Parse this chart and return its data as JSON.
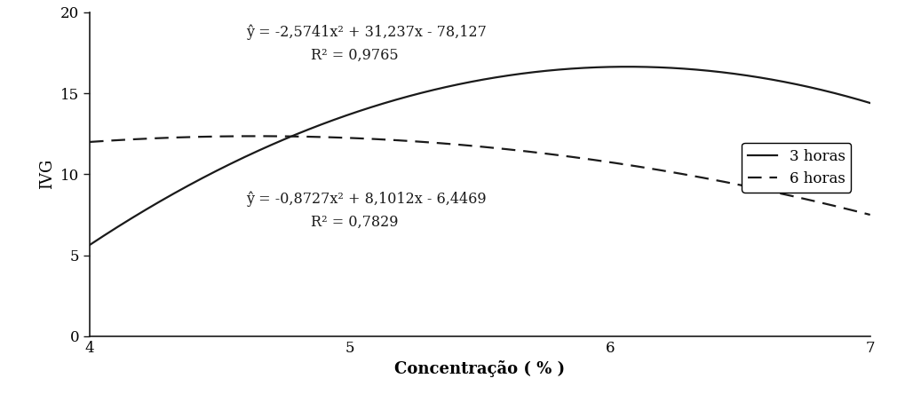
{
  "xlabel": "Concentração ( % )",
  "ylabel": "IVG",
  "xlim": [
    4,
    7
  ],
  "ylim": [
    0,
    20
  ],
  "xticks": [
    4,
    5,
    6,
    7
  ],
  "yticks": [
    0,
    5,
    10,
    15,
    20
  ],
  "curve1_label": "3 horas",
  "curve1_eq_line1": "ŷ = -2,5741x² + 31,237x - 78,127",
  "curve1_eq_line2": "R² = 0,9765",
  "curve1_a": -2.5741,
  "curve1_b": 31.237,
  "curve1_c": -78.127,
  "curve2_label": "6 horas",
  "curve2_eq_line1": "ŷ = -0,8727x² + 8,1012x - 6,4469",
  "curve2_eq_line2": "R² = 0,7829",
  "curve2_a": -0.8727,
  "curve2_b": 8.1012,
  "curve2_c": -6.4469,
  "line_color": "#1a1a1a",
  "ann1_x": 4.6,
  "ann1_y1": 18.5,
  "ann1_y2": 17.1,
  "ann2_x": 4.6,
  "ann2_y1": 8.2,
  "ann2_y2": 6.8,
  "annotation_fontsize": 11.5,
  "label_fontsize": 13,
  "tick_fontsize": 12,
  "legend_fontsize": 12
}
